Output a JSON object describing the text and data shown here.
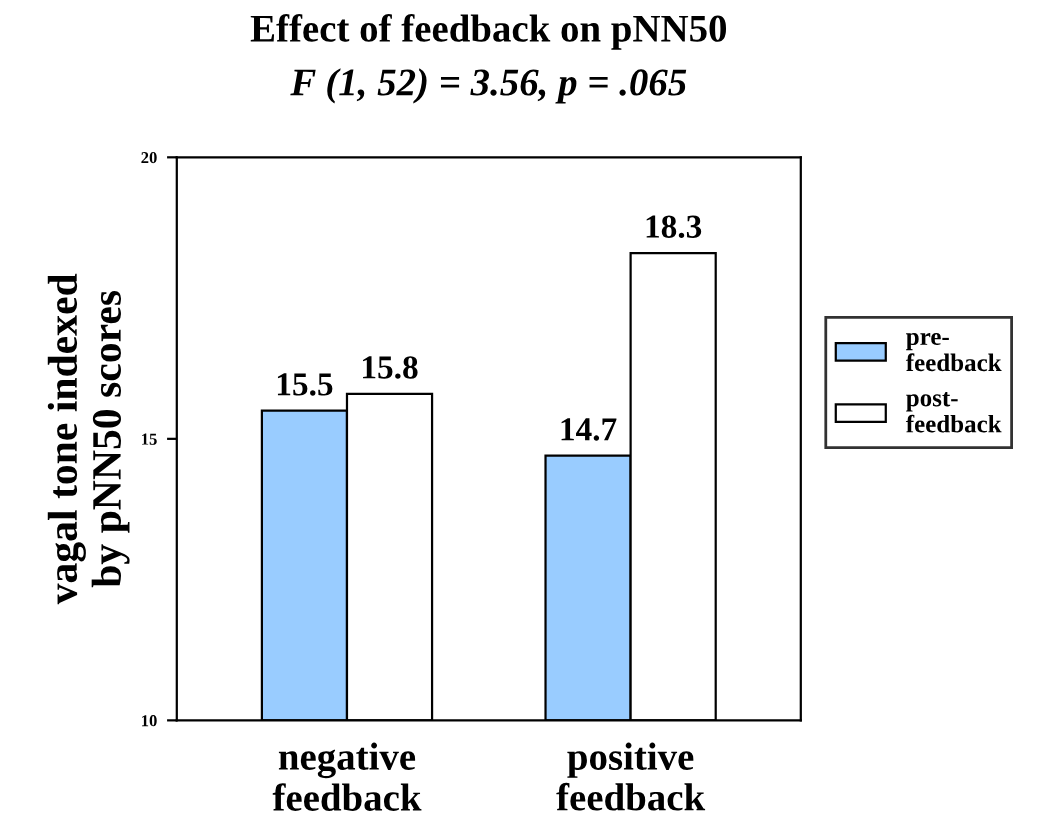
{
  "chart_data": {
    "type": "bar",
    "title": "Effect of feedback on pNN50",
    "subtitle": "F (1, 52) = 3.56, p = .065",
    "ylabel": "vagal tone indexed\nby pNN50 scores",
    "categories": [
      "negative\nfeedback",
      "positive\nfeedback"
    ],
    "series": [
      {
        "name": "pre-\nfeedback",
        "color": "#99ccff",
        "values": [
          15.5,
          14.7
        ]
      },
      {
        "name": "post-\nfeedback",
        "color": "#ffffff",
        "values": [
          15.8,
          18.3
        ]
      }
    ],
    "ylim": [
      10,
      20
    ],
    "yticks": [
      10,
      15,
      20
    ],
    "data_labels": true,
    "legend": "right",
    "grid": false
  }
}
